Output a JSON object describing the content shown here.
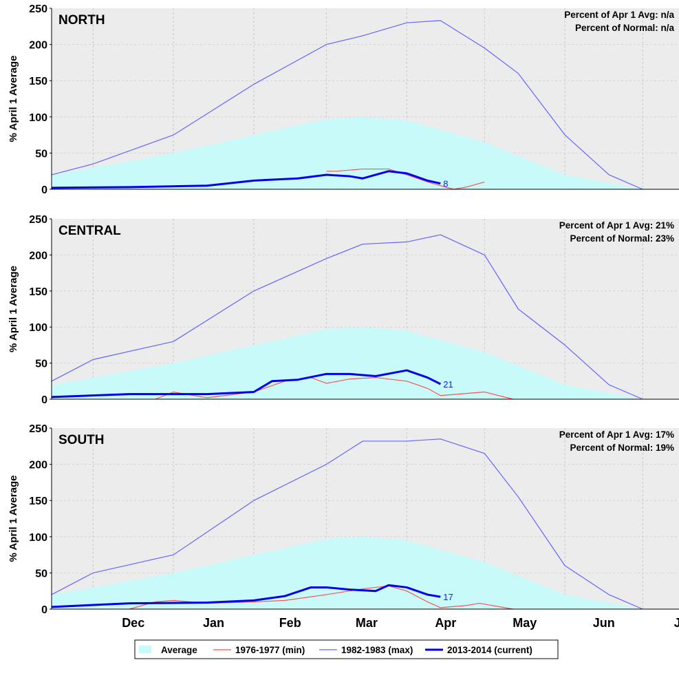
{
  "chart_data": {
    "type": "area",
    "title": "",
    "ylabel": "% April 1 Average",
    "ylim": [
      0,
      250
    ],
    "yticks": [
      "0",
      "50",
      "100",
      "150",
      "200",
      "250"
    ],
    "x_categories": [
      "Dec",
      "Jan",
      "Feb",
      "Mar",
      "Apr",
      "May",
      "Jun",
      "Jul"
    ],
    "x_unit": "day index from Nov 15 (month ticks at Dec 1=16, Jan 1=47, Feb 1=78, Mar 1=106, Apr 1=137, May 1=167, Jun 1=198, Jul 1=228)",
    "xlim": [
      0,
      242
    ],
    "legend": {
      "position": "bottom",
      "entries": [
        {
          "key": "average",
          "label": "Average",
          "color": "#c8fafa"
        },
        {
          "key": "min",
          "label": "1976-1977 (min)",
          "color": "#ff5050"
        },
        {
          "key": "max",
          "label": "1982-1983 (max)",
          "color": "#6464ff"
        },
        {
          "key": "current",
          "label": "2013-2014 (current)",
          "color": "#0000ee"
        }
      ]
    },
    "panels": [
      {
        "region": "NORTH",
        "stat_apr_label": "Percent of Apr 1 Avg: n/a",
        "stat_normal_label": "Percent of Normal: n/a",
        "current_end_label": "8",
        "average": {
          "x": [
            0,
            16,
            47,
            78,
            106,
            120,
            137,
            167,
            198,
            228
          ],
          "y": [
            20,
            30,
            50,
            75,
            97,
            100,
            95,
            65,
            20,
            0
          ]
        },
        "min": {
          "x": [
            106,
            110,
            120,
            130,
            137,
            145,
            155,
            160,
            167
          ],
          "y": [
            25,
            25,
            28,
            28,
            20,
            10,
            0,
            3,
            10
          ]
        },
        "max": {
          "x": [
            0,
            16,
            47,
            78,
            106,
            120,
            137,
            150,
            167,
            180,
            198,
            215,
            228
          ],
          "y": [
            20,
            35,
            75,
            145,
            200,
            212,
            230,
            233,
            195,
            160,
            75,
            20,
            0
          ]
        },
        "current": {
          "x": [
            0,
            30,
            60,
            78,
            95,
            106,
            115,
            120,
            125,
            130,
            137,
            145,
            150
          ],
          "y": [
            2,
            3,
            5,
            12,
            15,
            20,
            18,
            15,
            20,
            25,
            22,
            12,
            8
          ]
        }
      },
      {
        "region": "CENTRAL",
        "stat_apr_label": "Percent of Apr 1 Avg: 21%",
        "stat_normal_label": "Percent of Normal: 23%",
        "current_end_label": "21",
        "average": {
          "x": [
            0,
            16,
            47,
            78,
            106,
            120,
            137,
            167,
            198,
            228
          ],
          "y": [
            20,
            30,
            50,
            75,
            97,
            100,
            95,
            65,
            20,
            0
          ]
        },
        "min": {
          "x": [
            40,
            47,
            60,
            78,
            90,
            100,
            106,
            115,
            125,
            137,
            145,
            150,
            167,
            178
          ],
          "y": [
            0,
            10,
            2,
            10,
            25,
            30,
            22,
            28,
            30,
            25,
            15,
            5,
            10,
            0
          ]
        },
        "max": {
          "x": [
            0,
            16,
            47,
            78,
            106,
            120,
            137,
            150,
            167,
            180,
            198,
            215,
            228
          ],
          "y": [
            25,
            55,
            80,
            150,
            195,
            215,
            218,
            228,
            200,
            125,
            75,
            20,
            0
          ]
        },
        "current": {
          "x": [
            0,
            30,
            60,
            78,
            85,
            95,
            106,
            115,
            125,
            137,
            145,
            150
          ],
          "y": [
            3,
            7,
            7,
            10,
            25,
            27,
            35,
            35,
            32,
            40,
            30,
            21
          ]
        }
      },
      {
        "region": "SOUTH",
        "stat_apr_label": "Percent of Apr 1 Avg: 17%",
        "stat_normal_label": "Percent of Normal: 19%",
        "current_end_label": "17",
        "average": {
          "x": [
            0,
            16,
            47,
            78,
            106,
            120,
            137,
            167,
            198,
            228
          ],
          "y": [
            20,
            30,
            50,
            75,
            97,
            100,
            95,
            65,
            20,
            0
          ]
        },
        "min": {
          "x": [
            30,
            40,
            47,
            60,
            78,
            90,
            106,
            120,
            130,
            137,
            145,
            150,
            160,
            165,
            178
          ],
          "y": [
            0,
            10,
            12,
            8,
            10,
            12,
            20,
            28,
            32,
            25,
            10,
            2,
            5,
            8,
            0
          ]
        },
        "max": {
          "x": [
            0,
            16,
            47,
            78,
            106,
            120,
            137,
            150,
            167,
            180,
            198,
            215,
            228
          ],
          "y": [
            20,
            50,
            75,
            150,
            200,
            232,
            232,
            235,
            215,
            155,
            60,
            20,
            0
          ]
        },
        "current": {
          "x": [
            0,
            30,
            60,
            78,
            90,
            100,
            106,
            115,
            125,
            130,
            137,
            145,
            150
          ],
          "y": [
            3,
            8,
            9,
            12,
            18,
            30,
            30,
            27,
            25,
            33,
            30,
            20,
            17
          ]
        }
      }
    ]
  }
}
